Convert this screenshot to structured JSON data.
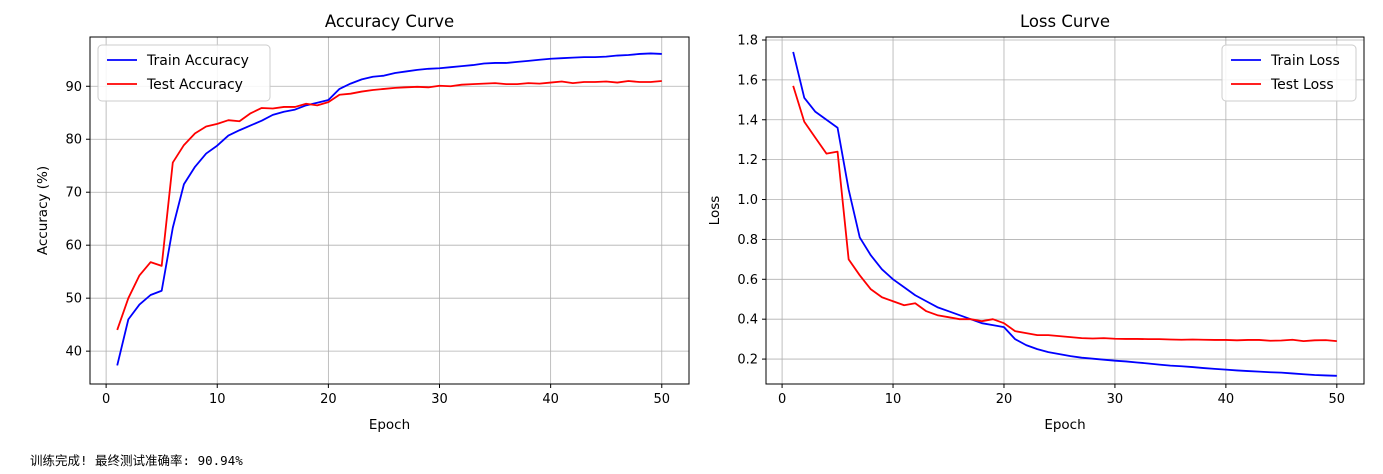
{
  "status": {
    "message": "训练完成! 最终测试准确率: 90.94%"
  },
  "chart_data": [
    {
      "type": "line",
      "title": "Accuracy Curve",
      "xlabel": "Epoch",
      "ylabel": "Accuracy (%)",
      "xlim": [
        -1.45,
        52.45
      ],
      "ylim": [
        33.8,
        99.3
      ],
      "xticks": [
        0,
        10,
        20,
        30,
        40,
        50
      ],
      "yticks": [
        40,
        50,
        60,
        70,
        80,
        90
      ],
      "grid": true,
      "legend": "top-left",
      "x": [
        1,
        2,
        3,
        4,
        5,
        6,
        7,
        8,
        9,
        10,
        11,
        12,
        13,
        14,
        15,
        16,
        17,
        18,
        19,
        20,
        21,
        22,
        23,
        24,
        25,
        26,
        27,
        28,
        29,
        30,
        31,
        32,
        33,
        34,
        35,
        36,
        37,
        38,
        39,
        40,
        41,
        42,
        43,
        44,
        45,
        46,
        47,
        48,
        49,
        50
      ],
      "series": [
        {
          "name": "Train Accuracy",
          "color": "#0000ff",
          "values": [
            37.3,
            46.0,
            48.8,
            50.6,
            51.4,
            63.3,
            71.5,
            74.8,
            77.3,
            78.8,
            80.7,
            81.7,
            82.6,
            83.5,
            84.6,
            85.2,
            85.6,
            86.4,
            86.9,
            87.4,
            89.5,
            90.5,
            91.3,
            91.8,
            92.0,
            92.5,
            92.8,
            93.1,
            93.3,
            93.4,
            93.6,
            93.8,
            94.0,
            94.3,
            94.4,
            94.4,
            94.6,
            94.8,
            95.0,
            95.2,
            95.3,
            95.4,
            95.5,
            95.5,
            95.6,
            95.8,
            95.9,
            96.1,
            96.2,
            96.1
          ]
        },
        {
          "name": "Test Accuracy",
          "color": "#ff0000",
          "values": [
            44.0,
            50.0,
            54.3,
            56.8,
            56.1,
            75.6,
            78.9,
            81.1,
            82.4,
            82.9,
            83.6,
            83.4,
            84.9,
            85.9,
            85.8,
            86.1,
            86.1,
            86.7,
            86.4,
            87.0,
            88.4,
            88.6,
            89.0,
            89.3,
            89.5,
            89.7,
            89.8,
            89.9,
            89.8,
            90.1,
            90.0,
            90.3,
            90.4,
            90.5,
            90.6,
            90.4,
            90.4,
            90.6,
            90.5,
            90.7,
            90.9,
            90.6,
            90.8,
            90.8,
            90.9,
            90.7,
            91.0,
            90.8,
            90.8,
            91.0
          ]
        }
      ]
    },
    {
      "type": "line",
      "title": "Loss Curve",
      "xlabel": "Epoch",
      "ylabel": "Loss",
      "xlim": [
        -1.45,
        52.45
      ],
      "ylim": [
        0.075,
        1.815
      ],
      "xticks": [
        0,
        10,
        20,
        30,
        40,
        50
      ],
      "yticks": [
        0.2,
        0.4,
        0.6,
        0.8,
        1.0,
        1.2,
        1.4,
        1.6,
        1.8
      ],
      "ytick_labels": [
        "0.2",
        "0.4",
        "0.6",
        "0.8",
        "1.0",
        "1.2",
        "1.4",
        "1.6",
        "1.8"
      ],
      "grid": true,
      "legend": "top-right",
      "x": [
        1,
        2,
        3,
        4,
        5,
        6,
        7,
        8,
        9,
        10,
        11,
        12,
        13,
        14,
        15,
        16,
        17,
        18,
        19,
        20,
        21,
        22,
        23,
        24,
        25,
        26,
        27,
        28,
        29,
        30,
        31,
        32,
        33,
        34,
        35,
        36,
        37,
        38,
        39,
        40,
        41,
        42,
        43,
        44,
        45,
        46,
        47,
        48,
        49,
        50
      ],
      "series": [
        {
          "name": "Train Loss",
          "color": "#0000ff",
          "values": [
            1.74,
            1.51,
            1.44,
            1.4,
            1.36,
            1.05,
            0.81,
            0.72,
            0.65,
            0.6,
            0.56,
            0.52,
            0.49,
            0.46,
            0.44,
            0.42,
            0.4,
            0.38,
            0.37,
            0.36,
            0.3,
            0.27,
            0.25,
            0.235,
            0.225,
            0.215,
            0.207,
            0.202,
            0.197,
            0.192,
            0.188,
            0.183,
            0.178,
            0.172,
            0.167,
            0.164,
            0.16,
            0.155,
            0.151,
            0.147,
            0.143,
            0.14,
            0.137,
            0.134,
            0.132,
            0.128,
            0.124,
            0.12,
            0.118,
            0.116
          ]
        },
        {
          "name": "Test Loss",
          "color": "#ff0000",
          "values": [
            1.57,
            1.39,
            1.31,
            1.23,
            1.24,
            0.7,
            0.62,
            0.55,
            0.51,
            0.49,
            0.47,
            0.48,
            0.44,
            0.42,
            0.41,
            0.4,
            0.4,
            0.39,
            0.4,
            0.38,
            0.34,
            0.33,
            0.32,
            0.32,
            0.315,
            0.31,
            0.305,
            0.303,
            0.305,
            0.302,
            0.301,
            0.301,
            0.3,
            0.3,
            0.298,
            0.297,
            0.298,
            0.297,
            0.296,
            0.296,
            0.294,
            0.296,
            0.296,
            0.292,
            0.293,
            0.297,
            0.29,
            0.294,
            0.295,
            0.29
          ]
        }
      ]
    }
  ]
}
